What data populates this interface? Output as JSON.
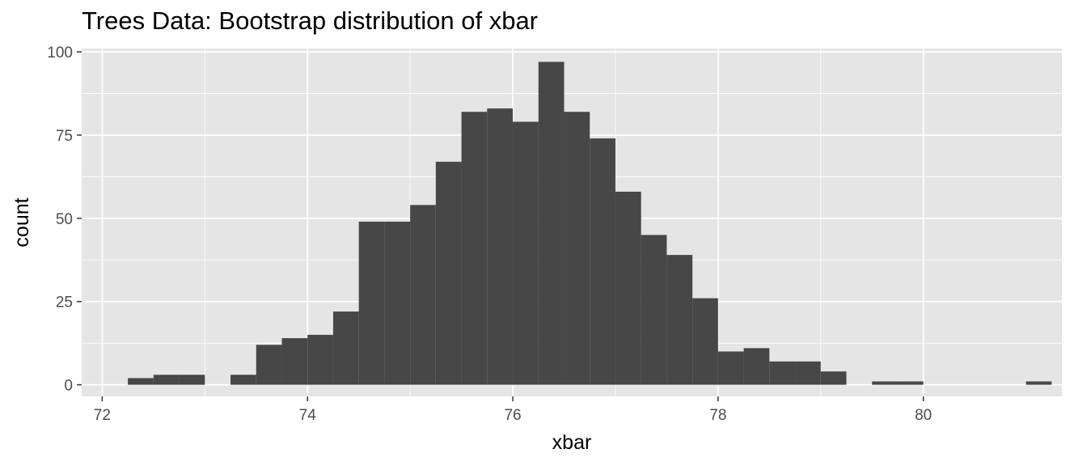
{
  "chart_data": {
    "type": "bar",
    "title": "Trees Data: Bootstrap distribution of xbar",
    "xlabel": "xbar",
    "ylabel": "count",
    "xlim": [
      71.8,
      81.35
    ],
    "ylim": [
      -3.5,
      101
    ],
    "x_ticks": [
      72,
      74,
      76,
      78,
      80
    ],
    "y_ticks": [
      0,
      25,
      50,
      75,
      100
    ],
    "bin_width": 0.25,
    "bins": [
      {
        "x": 72.125,
        "count": 0
      },
      {
        "x": 72.375,
        "count": 2
      },
      {
        "x": 72.625,
        "count": 3
      },
      {
        "x": 72.875,
        "count": 3
      },
      {
        "x": 73.125,
        "count": 0
      },
      {
        "x": 73.375,
        "count": 3
      },
      {
        "x": 73.625,
        "count": 12
      },
      {
        "x": 73.875,
        "count": 14
      },
      {
        "x": 74.125,
        "count": 15
      },
      {
        "x": 74.375,
        "count": 22
      },
      {
        "x": 74.625,
        "count": 49
      },
      {
        "x": 74.875,
        "count": 49
      },
      {
        "x": 75.125,
        "count": 54
      },
      {
        "x": 75.375,
        "count": 67
      },
      {
        "x": 75.625,
        "count": 82
      },
      {
        "x": 75.875,
        "count": 83
      },
      {
        "x": 76.125,
        "count": 79
      },
      {
        "x": 76.375,
        "count": 97
      },
      {
        "x": 76.625,
        "count": 82
      },
      {
        "x": 76.875,
        "count": 74
      },
      {
        "x": 77.125,
        "count": 58
      },
      {
        "x": 77.375,
        "count": 45
      },
      {
        "x": 77.625,
        "count": 39
      },
      {
        "x": 77.875,
        "count": 26
      },
      {
        "x": 78.125,
        "count": 10
      },
      {
        "x": 78.375,
        "count": 11
      },
      {
        "x": 78.625,
        "count": 7
      },
      {
        "x": 78.875,
        "count": 7
      },
      {
        "x": 79.125,
        "count": 4
      },
      {
        "x": 79.375,
        "count": 0
      },
      {
        "x": 79.625,
        "count": 1
      },
      {
        "x": 79.875,
        "count": 1
      },
      {
        "x": 80.125,
        "count": 0
      },
      {
        "x": 80.375,
        "count": 0
      },
      {
        "x": 80.625,
        "count": 0
      },
      {
        "x": 80.875,
        "count": 0
      },
      {
        "x": 81.125,
        "count": 1
      }
    ],
    "colors": {
      "panel_background": "#e5e5e5",
      "grid_major": "#ffffff",
      "bar_fill": "#474747",
      "tick_text": "#4d4d4d",
      "axis_text": "#000000"
    },
    "grid": true,
    "legend": "none"
  }
}
